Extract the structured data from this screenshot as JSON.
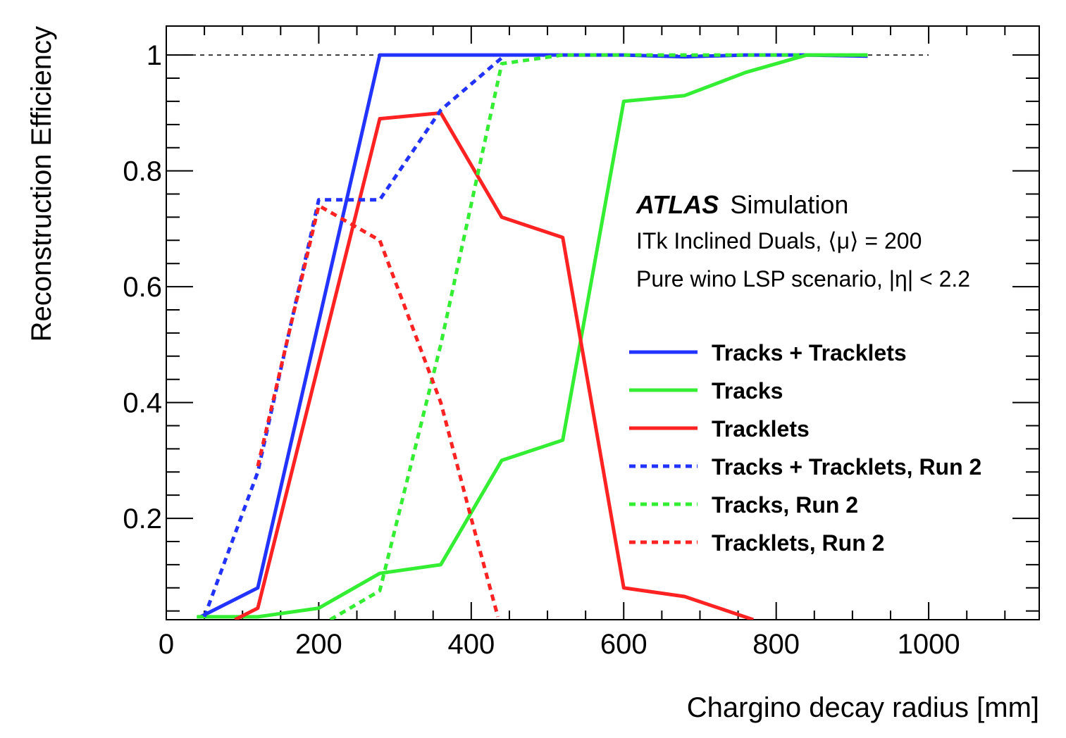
{
  "chart_data": {
    "type": "line",
    "xlabel": "Chargino decay radius [mm]",
    "ylabel": "Reconstruction Efficiency",
    "xlim": [
      0,
      1145
    ],
    "ylim": [
      0.025,
      1.05
    ],
    "x_major_ticks": [
      0,
      200,
      400,
      600,
      800,
      1000
    ],
    "x_tick_labels": [
      "0",
      "200",
      "400",
      "600",
      "800",
      "1000"
    ],
    "y_major_ticks": [
      0.2,
      0.4,
      0.6,
      0.8,
      1
    ],
    "y_tick_labels": [
      "0.2",
      "0.4",
      "0.6",
      "0.8",
      "1"
    ],
    "reference_line": {
      "y": 1,
      "x": [
        0,
        1000
      ],
      "color": "#000000",
      "style": "dashed"
    },
    "legend_placement": "center-right",
    "annotations": {
      "brand": "ATLAS",
      "label": "Simulation",
      "line1": "ITk Inclined Duals, ⟨μ⟩ = 200",
      "line2": "Pure wino LSP scenario, |η| < 2.2"
    },
    "series": [
      {
        "name": "Tracks + Tracklets",
        "color": "#2233ff",
        "style": "solid",
        "x": [
          45,
          120,
          280,
          360,
          440,
          520,
          600,
          680,
          760,
          840,
          920
        ],
        "y": [
          0.03,
          0.08,
          1.0,
          1.0,
          1.0,
          1.0,
          1.0,
          0.997,
          1.0,
          1.0,
          0.998
        ]
      },
      {
        "name": "Tracks",
        "color": "#33ee33",
        "style": "solid",
        "x": [
          40,
          120,
          200,
          280,
          360,
          440,
          520,
          600,
          680,
          760,
          840,
          920
        ],
        "y": [
          0.03,
          0.03,
          0.045,
          0.105,
          0.12,
          0.3,
          0.335,
          0.92,
          0.93,
          0.97,
          1.0,
          1.0
        ]
      },
      {
        "name": "Tracklets",
        "color": "#ff2222",
        "style": "solid",
        "x": [
          90,
          120,
          280,
          360,
          440,
          520,
          600,
          680,
          770
        ],
        "y": [
          0.025,
          0.045,
          0.89,
          0.9,
          0.72,
          0.685,
          0.08,
          0.065,
          0.025
        ]
      },
      {
        "name": "Tracks + Tracklets, Run 2",
        "color": "#2233ff",
        "style": "dotted",
        "x": [
          50,
          120,
          200,
          280,
          360,
          440
        ],
        "y": [
          0.03,
          0.28,
          0.75,
          0.75,
          0.905,
          0.995
        ]
      },
      {
        "name": "Tracks, Run 2",
        "color": "#33ee33",
        "style": "dotted",
        "x": [
          215,
          280,
          360,
          440,
          520,
          600,
          680,
          760,
          840,
          920
        ],
        "y": [
          0.025,
          0.075,
          0.5,
          0.985,
          1.0,
          1.0,
          1.0,
          1.0,
          1.0,
          1.0
        ]
      },
      {
        "name": "Tracklets, Run 2",
        "color": "#ff2222",
        "style": "dotted",
        "x": [
          120,
          200,
          280,
          360,
          400,
          435
        ],
        "y": [
          0.29,
          0.74,
          0.68,
          0.4,
          0.2,
          0.03
        ]
      }
    ]
  }
}
